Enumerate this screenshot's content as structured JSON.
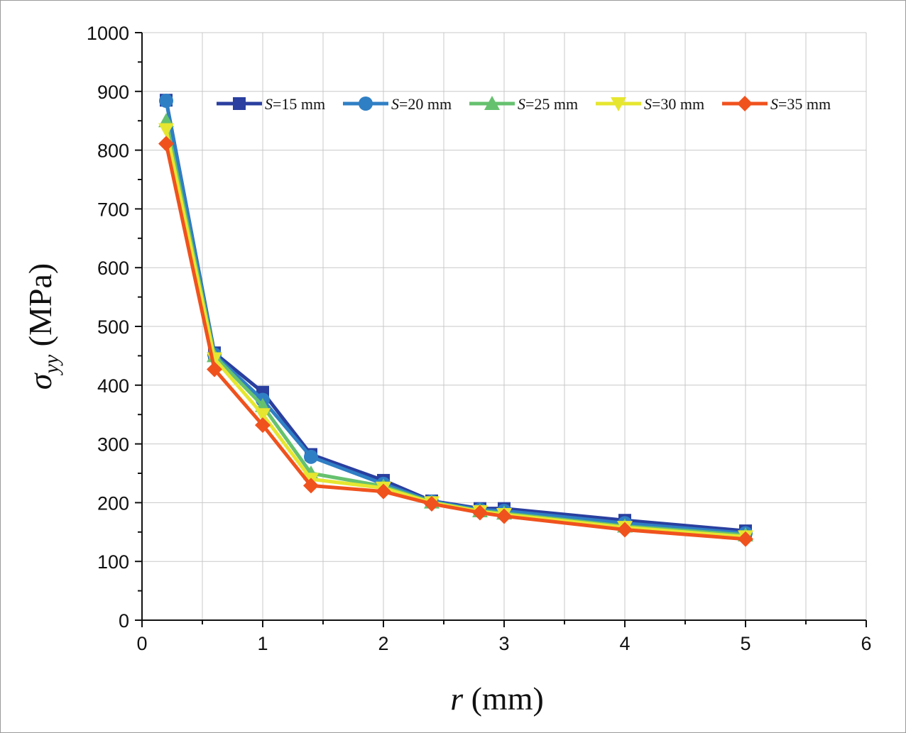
{
  "chart_data": {
    "type": "line",
    "title": "",
    "xlabel_symbol": "r",
    "xlabel_unit": " (mm)",
    "ylabel_symbol": "σ",
    "ylabel_sub": "yy",
    "ylabel_unit": " (MPa)",
    "xlim": [
      0,
      6
    ],
    "ylim": [
      0,
      1000
    ],
    "xticks": [
      0,
      1,
      2,
      3,
      4,
      5,
      6
    ],
    "yticks": [
      0,
      100,
      200,
      300,
      400,
      500,
      600,
      700,
      800,
      900,
      1000
    ],
    "grid": true,
    "legend_position": "top-right",
    "x": [
      0.2,
      0.6,
      1.0,
      1.4,
      2.0,
      2.4,
      2.8,
      3.0,
      4.0,
      5.0
    ],
    "series": [
      {
        "name": "S=15 mm",
        "label_italic": "S",
        "label_rest": "=15 mm",
        "color": "#2a3f9f",
        "marker": "square",
        "values": [
          885,
          455,
          388,
          282,
          238,
          203,
          190,
          190,
          170,
          152
        ]
      },
      {
        "name": "S=20 mm",
        "label_italic": "S",
        "label_rest": "=20 mm",
        "color": "#2f7fc4",
        "marker": "circle",
        "values": [
          884,
          452,
          375,
          278,
          232,
          202,
          188,
          186,
          165,
          148
        ]
      },
      {
        "name": "S=25 mm",
        "label_italic": "S",
        "label_rest": "=25 mm",
        "color": "#66c16e",
        "marker": "triangle-up",
        "values": [
          850,
          450,
          365,
          250,
          228,
          201,
          186,
          182,
          160,
          145
        ]
      },
      {
        "name": "S=30 mm",
        "label_italic": "S",
        "label_rest": "=30 mm",
        "color": "#e6e630",
        "marker": "triangle-down",
        "values": [
          835,
          445,
          350,
          240,
          225,
          200,
          185,
          180,
          158,
          142
        ]
      },
      {
        "name": "S=35 mm",
        "label_italic": "S",
        "label_rest": "=35 mm",
        "color": "#f0521e",
        "marker": "diamond",
        "values": [
          811,
          427,
          332,
          229,
          219,
          198,
          183,
          177,
          154,
          138
        ]
      }
    ]
  }
}
